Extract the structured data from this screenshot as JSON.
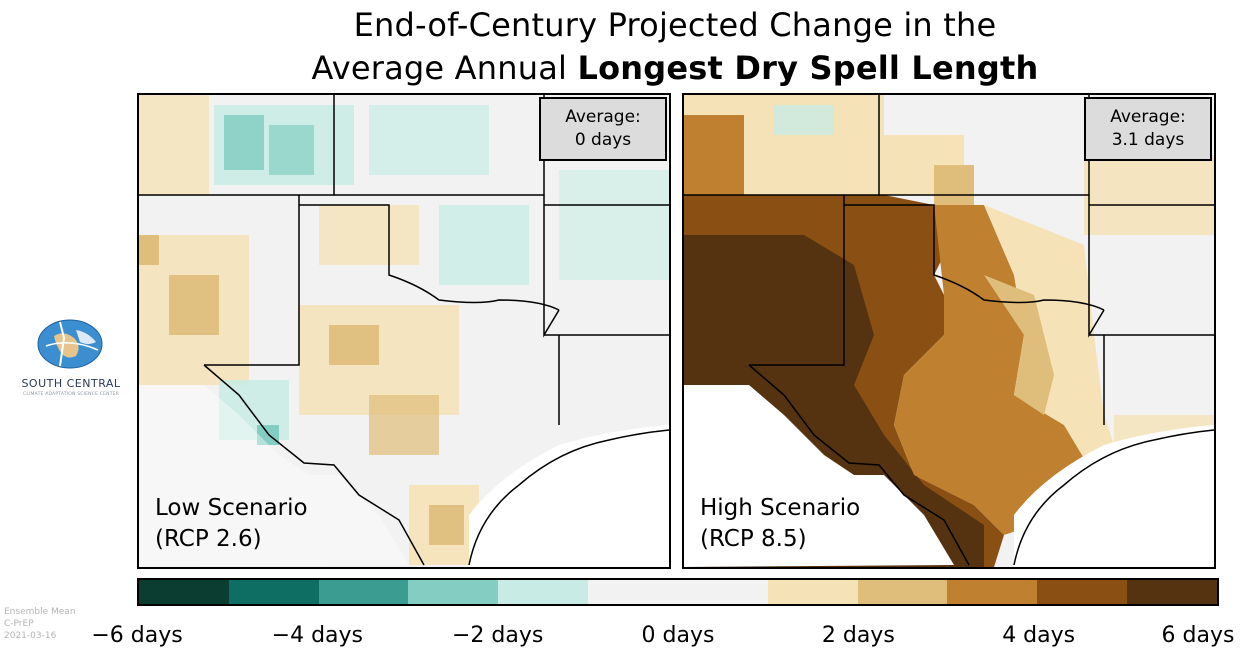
{
  "title": {
    "line1": "End-of-Century Projected Change in the",
    "line2_regular": "Average Annual ",
    "line2_bold": "Longest Dry Spell Length"
  },
  "panels": [
    {
      "scenario_line1": "Low Scenario",
      "scenario_line2": "(RCP 2.6)",
      "average_label": "Average:",
      "average_value": "0 days"
    },
    {
      "scenario_line1": "High Scenario",
      "scenario_line2": "(RCP 8.5)",
      "average_label": "Average:",
      "average_value": "3.1 days"
    }
  ],
  "logo": {
    "name": "SOUTH CENTRAL",
    "subtitle": "CLIMATE ADAPTATION SCIENCE CENTER"
  },
  "meta": {
    "line1": "Ensemble Mean",
    "line2": "C-PrEP",
    "line3": "2021-03-16"
  },
  "legend": {
    "colors": [
      "#0b3d30",
      "#0e6e63",
      "#3b9c91",
      "#84cdc2",
      "#c8ece5",
      "#f2f2f2",
      "#f2f2f2",
      "#f5e2b6",
      "#dfbd7a",
      "#bf802f",
      "#8a4f12",
      "#553310"
    ],
    "labels": [
      "−6 days",
      "−4 days",
      "−2 days",
      "0 days",
      "2 days",
      "4 days",
      "6 days"
    ]
  },
  "map_colors": {
    "neutral": "#f2f2f2",
    "light_teal": "#c8ece5",
    "mid_teal": "#84cdc2",
    "light_tan": "#f5e2b6",
    "tan": "#dfbd7a",
    "brown": "#bf802f",
    "dark_brown": "#8a4f12",
    "darkest_brown": "#553310",
    "water": "#ffffff"
  }
}
